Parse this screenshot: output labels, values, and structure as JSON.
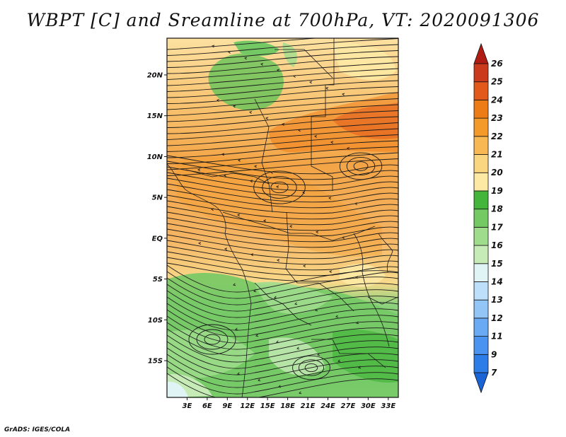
{
  "title": "WBPT [C] and Sreamline at 700hPa, VT: 2020091306",
  "credit": "GrADS: IGES/COLA",
  "map": {
    "variable": "Wet-bulb potential temperature",
    "units": "C",
    "level": "700hPa",
    "valid_time": "2020091306",
    "lat_labels": [
      "20N",
      "15N",
      "10N",
      "5N",
      "EQ",
      "5S",
      "10S",
      "15S"
    ],
    "lat_values": [
      20,
      15,
      10,
      5,
      0,
      -5,
      -10,
      -15
    ],
    "lon_labels": [
      "3E",
      "6E",
      "9E",
      "12E",
      "15E",
      "18E",
      "21E",
      "24E",
      "27E",
      "30E",
      "33E"
    ],
    "lon_values": [
      3,
      6,
      9,
      12,
      15,
      18,
      21,
      24,
      27,
      30,
      33
    ],
    "lon_range": [
      0,
      34.5
    ],
    "lat_range": [
      -19.5,
      24.5
    ]
  },
  "colorbar": {
    "labels": [
      "7",
      "9",
      "11",
      "12",
      "13",
      "14",
      "15",
      "16",
      "17",
      "18",
      "19",
      "20",
      "21",
      "22",
      "23",
      "24",
      "25",
      "26"
    ],
    "colors": [
      "#1a64d6",
      "#2d7de8",
      "#4b93f0",
      "#6aaaf5",
      "#93c5f7",
      "#bddff9",
      "#e0f4f6",
      "#c6ebb6",
      "#9fdc8c",
      "#74c965",
      "#44b53b",
      "#fde9a4",
      "#fbd681",
      "#f8b955",
      "#f49a2b",
      "#ee7c16",
      "#e2591a",
      "#cc3a1d",
      "#b01c14"
    ]
  }
}
